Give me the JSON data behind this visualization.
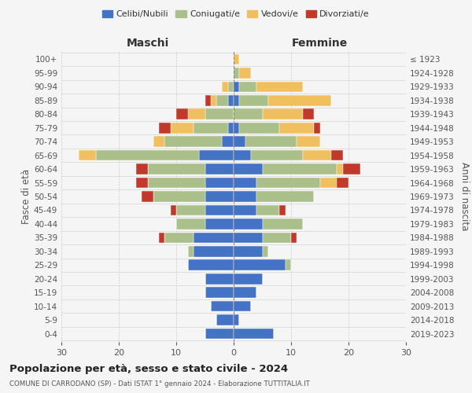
{
  "age_groups": [
    "0-4",
    "5-9",
    "10-14",
    "15-19",
    "20-24",
    "25-29",
    "30-34",
    "35-39",
    "40-44",
    "45-49",
    "50-54",
    "55-59",
    "60-64",
    "65-69",
    "70-74",
    "75-79",
    "80-84",
    "85-89",
    "90-94",
    "95-99",
    "100+"
  ],
  "birth_years": [
    "2019-2023",
    "2014-2018",
    "2009-2013",
    "2004-2008",
    "1999-2003",
    "1994-1998",
    "1989-1993",
    "1984-1988",
    "1979-1983",
    "1974-1978",
    "1969-1973",
    "1964-1968",
    "1959-1963",
    "1954-1958",
    "1949-1953",
    "1944-1948",
    "1939-1943",
    "1934-1938",
    "1929-1933",
    "1924-1928",
    "≤ 1923"
  ],
  "male": {
    "celibi": [
      5,
      3,
      4,
      5,
      5,
      8,
      7,
      7,
      5,
      5,
      5,
      5,
      5,
      6,
      2,
      1,
      0,
      1,
      0,
      0,
      0
    ],
    "coniugati": [
      0,
      0,
      0,
      0,
      0,
      0,
      1,
      5,
      5,
      5,
      9,
      10,
      10,
      18,
      10,
      6,
      5,
      2,
      1,
      0,
      0
    ],
    "vedovi": [
      0,
      0,
      0,
      0,
      0,
      0,
      0,
      0,
      0,
      0,
      0,
      0,
      0,
      3,
      2,
      4,
      3,
      1,
      1,
      0,
      0
    ],
    "divorziati": [
      0,
      0,
      0,
      0,
      0,
      0,
      0,
      1,
      0,
      1,
      2,
      2,
      2,
      0,
      0,
      2,
      2,
      1,
      0,
      0,
      0
    ]
  },
  "female": {
    "nubili": [
      7,
      1,
      3,
      4,
      5,
      9,
      5,
      5,
      5,
      4,
      4,
      4,
      5,
      3,
      2,
      1,
      0,
      1,
      1,
      0,
      0
    ],
    "coniugate": [
      0,
      0,
      0,
      0,
      0,
      1,
      1,
      5,
      7,
      4,
      10,
      11,
      13,
      9,
      9,
      7,
      5,
      5,
      3,
      1,
      0
    ],
    "vedove": [
      0,
      0,
      0,
      0,
      0,
      0,
      0,
      0,
      0,
      0,
      0,
      3,
      1,
      5,
      4,
      6,
      7,
      11,
      8,
      2,
      1
    ],
    "divorziate": [
      0,
      0,
      0,
      0,
      0,
      0,
      0,
      1,
      0,
      1,
      0,
      2,
      3,
      2,
      0,
      1,
      2,
      0,
      0,
      0,
      0
    ]
  },
  "colors": {
    "celibi_nubili": "#4472C4",
    "coniugati": "#AABF8A",
    "vedovi": "#F0C060",
    "divorziati": "#C0392B"
  },
  "xlim": 30,
  "title": "Popolazione per età, sesso e stato civile - 2024",
  "subtitle": "COMUNE DI CARRODANO (SP) - Dati ISTAT 1° gennaio 2024 - Elaborazione TUTTITALIA.IT",
  "xlabel_left": "Maschi",
  "xlabel_right": "Femmine",
  "ylabel_left": "Fasce di età",
  "ylabel_right": "Anni di nascita",
  "legend_labels": [
    "Celibi/Nubili",
    "Coniugati/e",
    "Vedovi/e",
    "Divorziati/e"
  ],
  "background_color": "#f5f5f5",
  "grid_color": "#cccccc"
}
